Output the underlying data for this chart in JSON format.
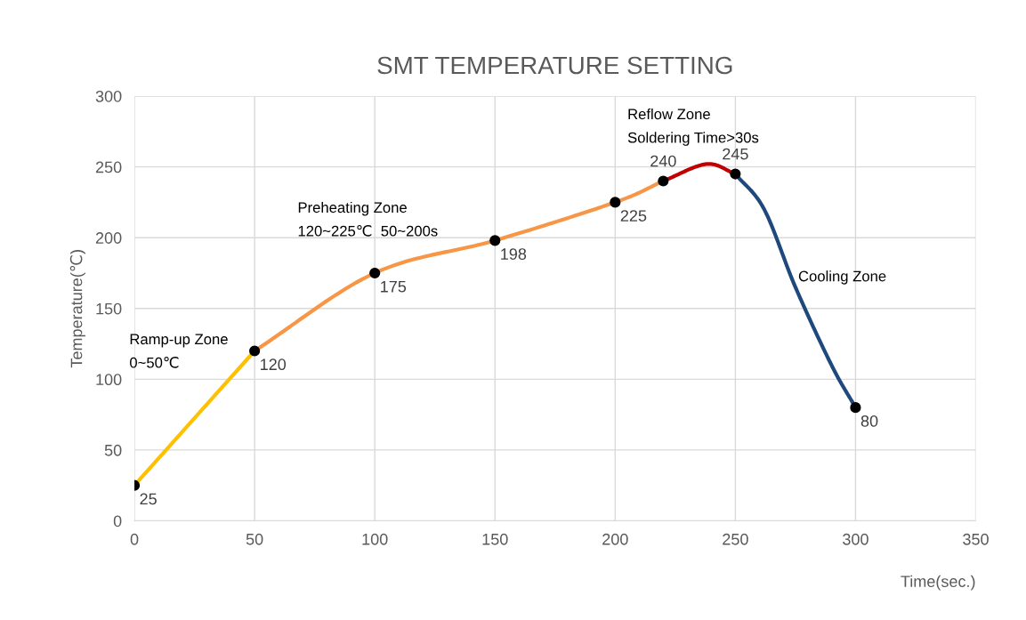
{
  "chart_data": {
    "type": "line",
    "title": "SMT TEMPERATURE SETTING",
    "xlabel": "Time(sec.)",
    "ylabel": "Temperature(℃)",
    "xlim": [
      0,
      350
    ],
    "xticks": [
      0,
      50,
      100,
      150,
      200,
      250,
      300,
      350
    ],
    "ylim": [
      0,
      300
    ],
    "yticks": [
      0,
      50,
      100,
      150,
      200,
      250,
      300
    ],
    "grid": true,
    "legend": false,
    "marker": "none",
    "line_style": "solid",
    "series": [
      {
        "color": "#ffc000",
        "x": [
          0,
          50
        ],
        "values": [
          25,
          120
        ]
      },
      {
        "color": "#f79646",
        "x": [
          50,
          100,
          150,
          200,
          220
        ],
        "values": [
          120,
          175,
          198,
          225,
          240
        ]
      },
      {
        "color": "#c00000",
        "x": [
          220,
          238,
          250
        ],
        "values": [
          240,
          252,
          245
        ]
      },
      {
        "color": "#1f497d",
        "x": [
          250,
          262,
          275,
          290,
          300
        ],
        "values": [
          245,
          220,
          165,
          110,
          80
        ]
      },
      {
        "type": "scatter",
        "marker": "circle",
        "color": "#000000",
        "x": [
          0,
          50,
          100,
          150,
          200,
          220,
          250,
          300
        ],
        "values": [
          25,
          120,
          175,
          198,
          225,
          240,
          245,
          80
        ],
        "value_labels": [
          "25",
          "120",
          "175",
          "198",
          "225",
          "240",
          "245",
          "80"
        ]
      }
    ],
    "annotations": [
      "Ramp-up Zone\n0~50℃",
      "Preheating Zone\n120~225℃  50~200s",
      "Reflow Zone\nSoldering Time>30s",
      "Cooling Zone"
    ]
  }
}
